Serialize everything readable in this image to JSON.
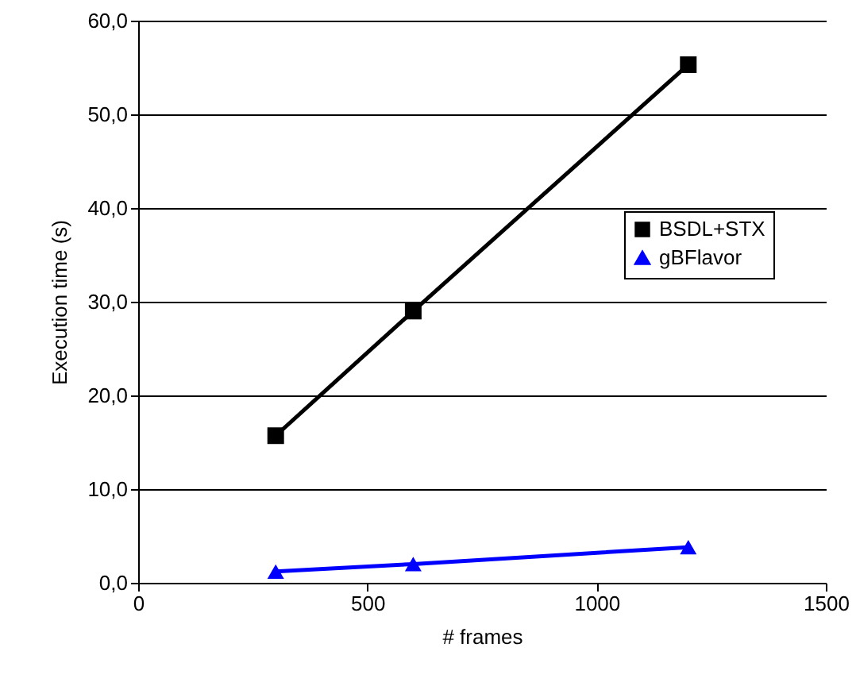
{
  "chart_data": {
    "type": "line",
    "xlabel": "# frames",
    "ylabel": "Execution time (s)",
    "x": [
      300,
      600,
      1200
    ],
    "series": [
      {
        "name": "BSDL+STX",
        "color": "#000000",
        "marker": "square",
        "values": [
          15.7,
          29.0,
          55.3
        ]
      },
      {
        "name": "gBFlavor",
        "color": "#0000ff",
        "marker": "triangle",
        "values": [
          1.2,
          2.0,
          3.8
        ]
      }
    ],
    "xlim": [
      0,
      1500
    ],
    "xticks": [
      0,
      500,
      1000,
      1500
    ],
    "ylim": [
      0,
      60
    ],
    "yticks": [
      {
        "value": 0,
        "label": "0,0"
      },
      {
        "value": 10,
        "label": "10,0"
      },
      {
        "value": 20,
        "label": "20,0"
      },
      {
        "value": 30,
        "label": "30,0"
      },
      {
        "value": 40,
        "label": "40,0"
      },
      {
        "value": 50,
        "label": "50,0"
      },
      {
        "value": 60,
        "label": "60,0"
      }
    ],
    "grid": "y",
    "legend": "right",
    "line_style": "solid"
  }
}
